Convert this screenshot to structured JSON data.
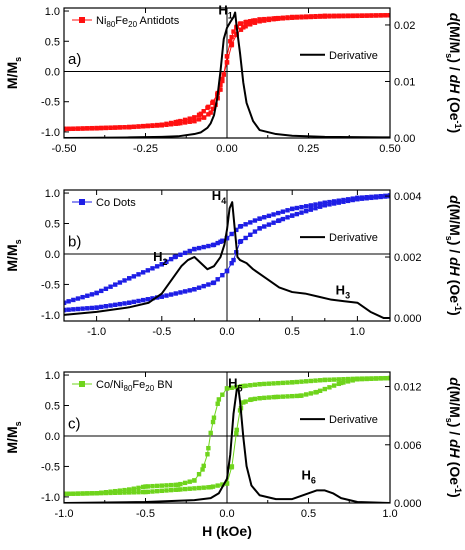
{
  "chart_data": [
    {
      "type": "line",
      "panel_label": "a)",
      "xlim": [
        -0.5,
        0.5
      ],
      "x_ticks": [
        "-0.50",
        "-0.25",
        "0.00",
        "0.25",
        "0.50"
      ],
      "ylim_left": [
        -1.1,
        1.05
      ],
      "y_ticks_left": [
        "1.0",
        "0.5",
        "0.0",
        "-0.5",
        "-1.0"
      ],
      "ylim_right": [
        0,
        0.023
      ],
      "y_ticks_right": [
        "0.02",
        "0.01",
        "0.00"
      ],
      "ylabel_left": "M/Ms",
      "ylabel_right": "d(M/Ms) / dH (Oe-1)",
      "legend_top": {
        "name": "Ni80Fe20 Antidots",
        "text_main": "Ni",
        "sub1": "80",
        "text_mid": "Fe",
        "sub2": "20",
        "text_end": " Antidots",
        "marker": "square",
        "color": "#ff1010"
      },
      "legend_deriv": {
        "name": "Derivative",
        "color": "#000000"
      },
      "peak_labels": [
        {
          "main": "H",
          "sub": "1",
          "x": 0.02,
          "y": 0.0215
        }
      ],
      "series": [
        {
          "name": "Ni80Fe20 Antidots",
          "color": "#ff1010",
          "branch_down": {
            "x": [
              0.5,
              0.3,
              0.2,
              0.15,
              0.1,
              0.07,
              0.05,
              0.03,
              0.015,
              0.0,
              -0.01,
              -0.02,
              -0.03,
              -0.045,
              -0.06,
              -0.08,
              -0.1,
              -0.15,
              -0.2,
              -0.3,
              -0.4,
              -0.5
            ],
            "y": [
              0.93,
              0.91,
              0.89,
              0.87,
              0.83,
              0.78,
              0.73,
              0.62,
              0.45,
              0.15,
              -0.05,
              -0.22,
              -0.38,
              -0.52,
              -0.6,
              -0.7,
              -0.76,
              -0.83,
              -0.88,
              -0.92,
              -0.94,
              -0.95
            ]
          },
          "branch_up": {
            "x": [
              -0.5,
              -0.3,
              -0.2,
              -0.15,
              -0.1,
              -0.07,
              -0.05,
              -0.035,
              -0.02,
              -0.01,
              0.0,
              0.01,
              0.02,
              0.03,
              0.04,
              0.06,
              0.08,
              0.1,
              0.15,
              0.2,
              0.3,
              0.5
            ],
            "y": [
              -0.95,
              -0.92,
              -0.89,
              -0.86,
              -0.82,
              -0.76,
              -0.68,
              -0.55,
              -0.3,
              -0.05,
              0.25,
              0.5,
              0.66,
              0.74,
              0.79,
              0.82,
              0.84,
              0.86,
              0.88,
              0.9,
              0.92,
              0.93
            ]
          }
        },
        {
          "name": "Derivative",
          "color": "#000000",
          "axis": "right",
          "x": [
            -0.5,
            -0.3,
            -0.2,
            -0.15,
            -0.1,
            -0.08,
            -0.06,
            -0.05,
            -0.04,
            -0.03,
            -0.02,
            -0.01,
            0.0,
            0.01,
            0.02,
            0.025,
            0.03,
            0.04,
            0.05,
            0.06,
            0.08,
            0.1,
            0.15,
            0.2,
            0.3,
            0.5
          ],
          "y": [
            0.0,
            0.0001,
            0.0002,
            0.0003,
            0.0007,
            0.001,
            0.0018,
            0.0026,
            0.004,
            0.007,
            0.0118,
            0.0175,
            0.0195,
            0.0205,
            0.0214,
            0.0222,
            0.0195,
            0.015,
            0.0098,
            0.0062,
            0.003,
            0.0014,
            0.0007,
            0.0004,
            0.0002,
            0.0001
          ]
        }
      ]
    },
    {
      "type": "line",
      "panel_label": "b)",
      "xlim": [
        -1.25,
        1.25
      ],
      "x_ticks": [
        "-1.0",
        "-0.5",
        "0.0",
        "0.5",
        "1.0"
      ],
      "ylim_left": [
        -1.1,
        1.05
      ],
      "y_ticks_left": [
        "1.0",
        "0.5",
        "0.0",
        "-0.5",
        "-1.0"
      ],
      "ylim_right": [
        -0.0001,
        0.0042
      ],
      "y_ticks_right": [
        "0.004",
        "0.002",
        "0.000"
      ],
      "ylabel_left": "M/Ms",
      "ylabel_right": "d(M/Ms) / dH (Oe-1)",
      "legend_top": {
        "name": "Co Dots",
        "text_main": "Co Dots",
        "marker": "square",
        "color": "#1e1ee6"
      },
      "legend_deriv": {
        "name": "Derivative",
        "color": "#000000"
      },
      "peak_labels": [
        {
          "main": "H",
          "sub": "4",
          "x": 0.0,
          "y": 0.0038
        },
        {
          "main": "H",
          "sub": "2",
          "x": -0.45,
          "y": 0.0018
        },
        {
          "main": "H",
          "sub": "3",
          "x": 0.95,
          "y": 0.0007
        }
      ],
      "series": [
        {
          "name": "Co Dots",
          "color": "#1e1ee6",
          "branch_down": {
            "x": [
              1.25,
              1.0,
              0.75,
              0.5,
              0.25,
              0.1,
              0.0,
              -0.05,
              -0.1,
              -0.25,
              -0.4,
              -0.5,
              -0.75,
              -1.0,
              -1.25
            ],
            "y": [
              0.96,
              0.92,
              0.84,
              0.74,
              0.58,
              0.45,
              0.26,
              0.2,
              0.15,
              0.08,
              -0.05,
              -0.17,
              -0.4,
              -0.64,
              -0.8
            ]
          },
          "branch_up": {
            "x": [
              -1.25,
              -1.0,
              -0.75,
              -0.5,
              -0.25,
              -0.1,
              0.0,
              0.05,
              0.1,
              0.25,
              0.4,
              0.5,
              0.75,
              1.0,
              1.25
            ],
            "y": [
              -0.92,
              -0.88,
              -0.8,
              -0.7,
              -0.58,
              -0.47,
              -0.28,
              -0.1,
              0.2,
              0.42,
              0.55,
              0.63,
              0.8,
              0.9,
              0.95
            ]
          }
        },
        {
          "name": "Derivative",
          "color": "#000000",
          "axis": "right",
          "x": [
            -1.25,
            -1.0,
            -0.75,
            -0.6,
            -0.5,
            -0.45,
            -0.4,
            -0.35,
            -0.3,
            -0.25,
            -0.2,
            -0.15,
            -0.1,
            -0.05,
            -0.02,
            0.0,
            0.02,
            0.04,
            0.06,
            0.08,
            0.1,
            0.15,
            0.2,
            0.3,
            0.4,
            0.5,
            0.6,
            0.7,
            0.8,
            0.9,
            1.0,
            1.1,
            1.2,
            1.25
          ],
          "y": [
            0.0001,
            0.0002,
            0.00035,
            0.0005,
            0.0008,
            0.0011,
            0.0014,
            0.0017,
            0.0019,
            0.002,
            0.0018,
            0.0016,
            0.0017,
            0.002,
            0.0024,
            0.0029,
            0.0036,
            0.0038,
            0.0029,
            0.002,
            0.0019,
            0.0018,
            0.0016,
            0.0013,
            0.001,
            0.00085,
            0.0008,
            0.0007,
            0.0006,
            0.00055,
            0.0005,
            0.0002,
            0.0,
            0.0
          ]
        }
      ]
    },
    {
      "type": "line",
      "panel_label": "c)",
      "xlim": [
        -1.0,
        1.0
      ],
      "x_ticks": [
        "-1.0",
        "-0.5",
        "0.0",
        "0.5",
        "1.0"
      ],
      "ylim_left": [
        -1.1,
        1.05
      ],
      "y_ticks_left": [
        "1.0",
        "0.5",
        "0.0",
        "-0.5",
        "-1.0"
      ],
      "ylim_right": [
        0,
        0.0135
      ],
      "y_ticks_right": [
        "0.012",
        "0.006",
        "0.000"
      ],
      "ylabel_left": "M/Ms",
      "ylabel_right": "d(M/Ms) / dH (Oe-1)",
      "xlabel": "H (kOe)",
      "legend_top": {
        "name": "Co/Ni80Fe20 BN",
        "text_main": "Co/Ni",
        "sub1": "80",
        "text_mid": "Fe",
        "sub2": "20",
        "text_end": " BN",
        "marker": "square",
        "color": "#6fd41c"
      },
      "legend_deriv": {
        "name": "Derivative",
        "color": "#000000"
      },
      "peak_labels": [
        {
          "main": "H",
          "sub": "5",
          "x": 0.1,
          "y": 0.0117
        },
        {
          "main": "H",
          "sub": "6",
          "x": 0.55,
          "y": 0.0022
        }
      ],
      "series": [
        {
          "name": "Co/Ni80Fe20 BN",
          "color": "#6fd41c",
          "branch_down": {
            "x": [
              1.0,
              0.8,
              0.6,
              0.4,
              0.2,
              0.1,
              0.0,
              -0.05,
              -0.08,
              -0.1,
              -0.12,
              -0.15,
              -0.2,
              -0.3,
              -0.5,
              -0.6,
              -0.8,
              -1.0
            ],
            "y": [
              0.95,
              0.94,
              0.92,
              0.88,
              0.85,
              0.82,
              0.78,
              0.6,
              0.3,
              0.05,
              -0.3,
              -0.55,
              -0.73,
              -0.8,
              -0.83,
              -0.88,
              -0.94,
              -0.95
            ]
          },
          "branch_up": {
            "x": [
              -1.0,
              -0.8,
              -0.5,
              -0.3,
              -0.1,
              0.0,
              0.03,
              0.06,
              0.08,
              0.1,
              0.15,
              0.2,
              0.3,
              0.45,
              0.55,
              0.7,
              0.8,
              1.0
            ],
            "y": [
              -0.95,
              -0.94,
              -0.92,
              -0.88,
              -0.84,
              -0.78,
              -0.5,
              0.1,
              0.42,
              0.55,
              0.6,
              0.62,
              0.64,
              0.66,
              0.72,
              0.87,
              0.93,
              0.95
            ]
          }
        },
        {
          "name": "Derivative",
          "color": "#000000",
          "axis": "right",
          "x": [
            -1.0,
            -0.5,
            -0.2,
            -0.1,
            -0.05,
            0.0,
            0.02,
            0.04,
            0.06,
            0.07,
            0.08,
            0.1,
            0.12,
            0.15,
            0.2,
            0.3,
            0.4,
            0.5,
            0.55,
            0.6,
            0.65,
            0.7,
            0.8,
            1.0
          ],
          "y": [
            0.0,
            0.0001,
            0.0003,
            0.0005,
            0.001,
            0.0025,
            0.005,
            0.0092,
            0.0117,
            0.0118,
            0.0105,
            0.0068,
            0.0038,
            0.0018,
            0.0008,
            0.0004,
            0.0004,
            0.001,
            0.0013,
            0.0013,
            0.001,
            0.0005,
            0.0001,
            0.0
          ]
        }
      ]
    }
  ]
}
